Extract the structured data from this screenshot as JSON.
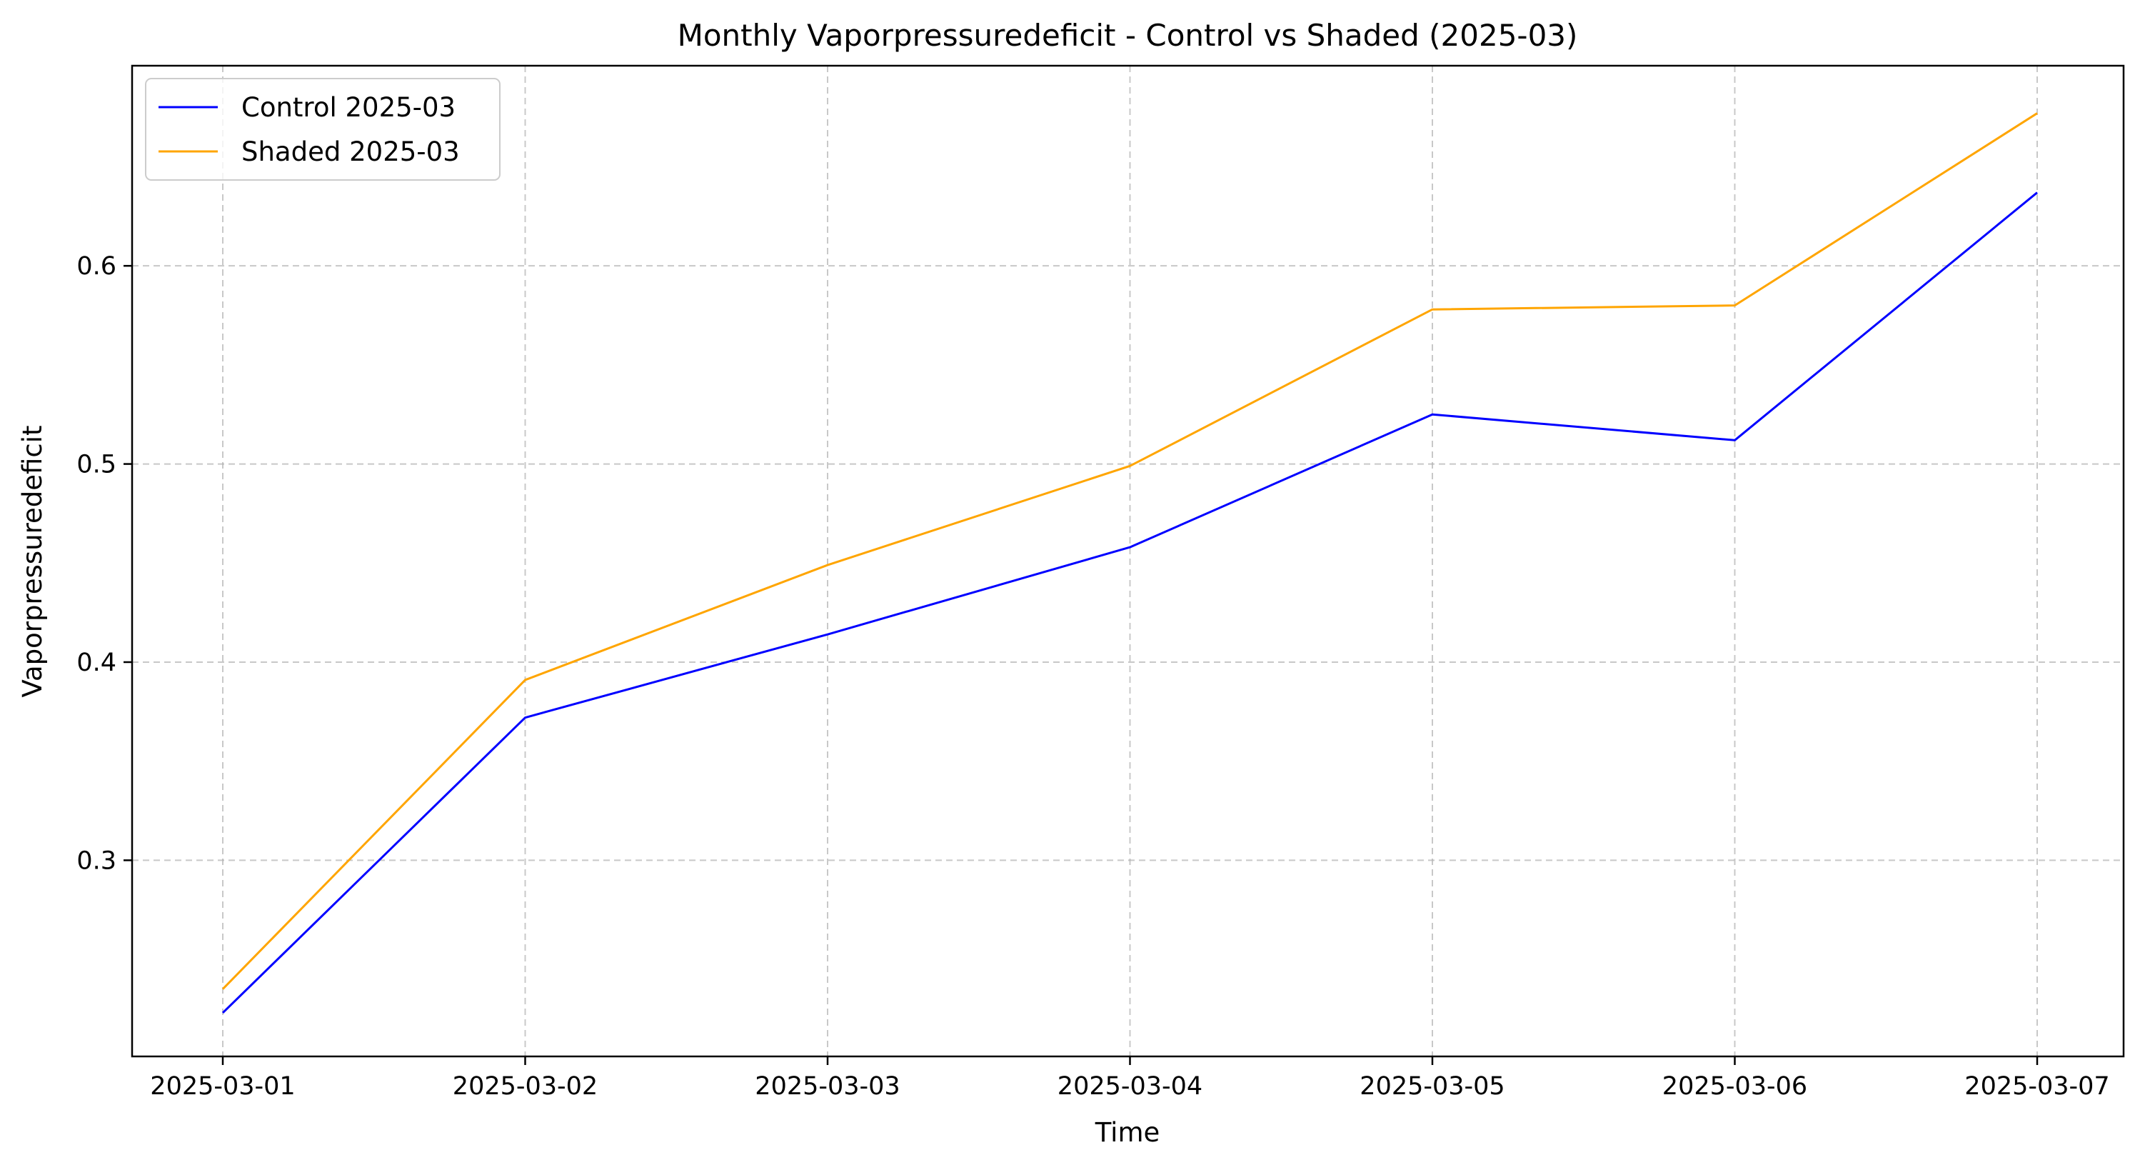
{
  "chart_data": {
    "type": "line",
    "title": "Monthly Vaporpressuredeficit - Control vs Shaded (2025-03)",
    "xlabel": "Time",
    "ylabel": "Vaporpressuredeficit",
    "categories": [
      "2025-03-01",
      "2025-03-02",
      "2025-03-03",
      "2025-03-04",
      "2025-03-05",
      "2025-03-06",
      "2025-03-07"
    ],
    "yticks": [
      0.3,
      0.4,
      0.5,
      0.6
    ],
    "ytick_labels": [
      "0.3",
      "0.4",
      "0.5",
      "0.6"
    ],
    "ylim": [
      0.201,
      0.701
    ],
    "grid": true,
    "legend_position": "top-left",
    "series": [
      {
        "name": "Control 2025-03",
        "color": "#0000ff",
        "values": [
          0.223,
          0.372,
          0.414,
          0.458,
          0.525,
          0.512,
          0.637
        ]
      },
      {
        "name": "Shaded 2025-03",
        "color": "#ffa500",
        "values": [
          0.235,
          0.391,
          0.449,
          0.499,
          0.578,
          0.58,
          0.677
        ]
      }
    ]
  }
}
